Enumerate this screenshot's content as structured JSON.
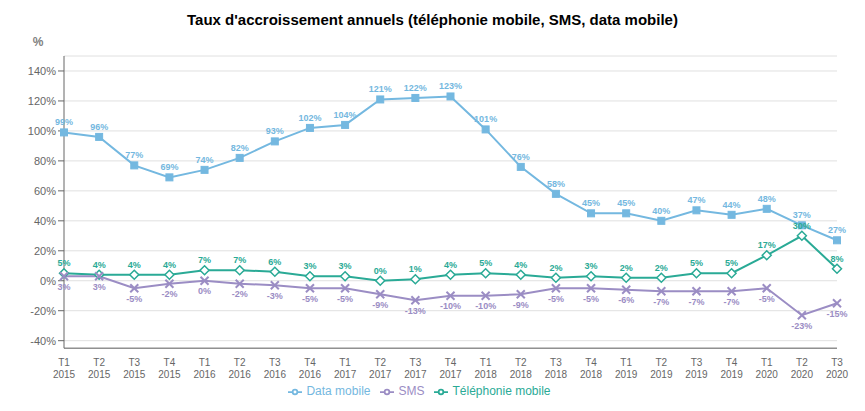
{
  "chart_data": {
    "type": "line",
    "title": "Taux d'accroissement annuels (téléphonie mobile, SMS, data mobile)",
    "ylabel": "%",
    "categories": [
      "T1\n2015",
      "T2\n2015",
      "T3\n2015",
      "T4\n2015",
      "T1\n2016",
      "T2\n2016",
      "T3\n2016",
      "T4\n2016",
      "T1\n2017",
      "T2\n2017",
      "T3\n2017",
      "T4\n2017",
      "T1\n2018",
      "T2\n2018",
      "T3\n2018",
      "T4\n2018",
      "T1\n2019",
      "T2\n2019",
      "T3\n2019",
      "T4\n2019",
      "T1\n2020",
      "T2\n2020",
      "T3\n2020"
    ],
    "series": [
      {
        "name": "Data mobile",
        "color": "#74b8e0",
        "marker": "square",
        "values": [
          99,
          96,
          77,
          69,
          74,
          82,
          93,
          102,
          104,
          121,
          122,
          123,
          101,
          76,
          58,
          45,
          45,
          40,
          47,
          44,
          48,
          37,
          27
        ],
        "value_labels": [
          "99%",
          "96%",
          "77%",
          "69%",
          "74%",
          "82%",
          "93%",
          "102%",
          "104%",
          "121%",
          "122%",
          "123%",
          "101%",
          "76%",
          "58%",
          "45%",
          "45%",
          "40%",
          "47%",
          "44%",
          "48%",
          "37%",
          "27%"
        ]
      },
      {
        "name": "Téléphonie mobile",
        "color": "#2aaa96",
        "marker": "diamond",
        "values": [
          5,
          4,
          4,
          4,
          7,
          7,
          6,
          3,
          3,
          0,
          1,
          4,
          5,
          4,
          2,
          3,
          2,
          2,
          5,
          5,
          17,
          30,
          8
        ],
        "value_labels": [
          "5%",
          "4%",
          "4%",
          "4%",
          "7%",
          "7%",
          "6%",
          "3%",
          "3%",
          "0%",
          "1%",
          "4%",
          "5%",
          "4%",
          "2%",
          "3%",
          "2%",
          "2%",
          "5%",
          "5%",
          "17%",
          "30%",
          "8%"
        ]
      },
      {
        "name": "SMS",
        "color": "#9b8dc4",
        "marker": "x",
        "values": [
          3,
          3,
          -5,
          -2,
          0,
          -2,
          -3,
          -5,
          -5,
          -9,
          -13,
          -10,
          -10,
          -9,
          -5,
          -5,
          -6,
          -7,
          -7,
          -7,
          -5,
          -23,
          -15
        ],
        "value_labels": [
          "3%",
          "3%",
          "-5%",
          "-2%",
          "0%",
          "-2%",
          "-3%",
          "-5%",
          "-5%",
          "-9%",
          "-13%",
          "-10%",
          "-10%",
          "-9%",
          "-5%",
          "-5%",
          "-6%",
          "-7%",
          "-7%",
          "-7%",
          "-5%",
          "-23%",
          "-15%"
        ]
      }
    ],
    "ylim": [
      -45,
      150
    ],
    "yticks": [
      {
        "value": -40,
        "label": "-40%"
      },
      {
        "value": -20,
        "label": "-20%"
      },
      {
        "value": 0,
        "label": "0%"
      },
      {
        "value": 20,
        "label": "20%"
      },
      {
        "value": 40,
        "label": "40%"
      },
      {
        "value": 60,
        "label": "60%"
      },
      {
        "value": 80,
        "label": "80%"
      },
      {
        "value": 100,
        "label": "100%"
      },
      {
        "value": 120,
        "label": "120%"
      },
      {
        "value": 140,
        "label": "140%"
      }
    ],
    "grid": true,
    "legend": "bottom",
    "data_labels": true
  }
}
